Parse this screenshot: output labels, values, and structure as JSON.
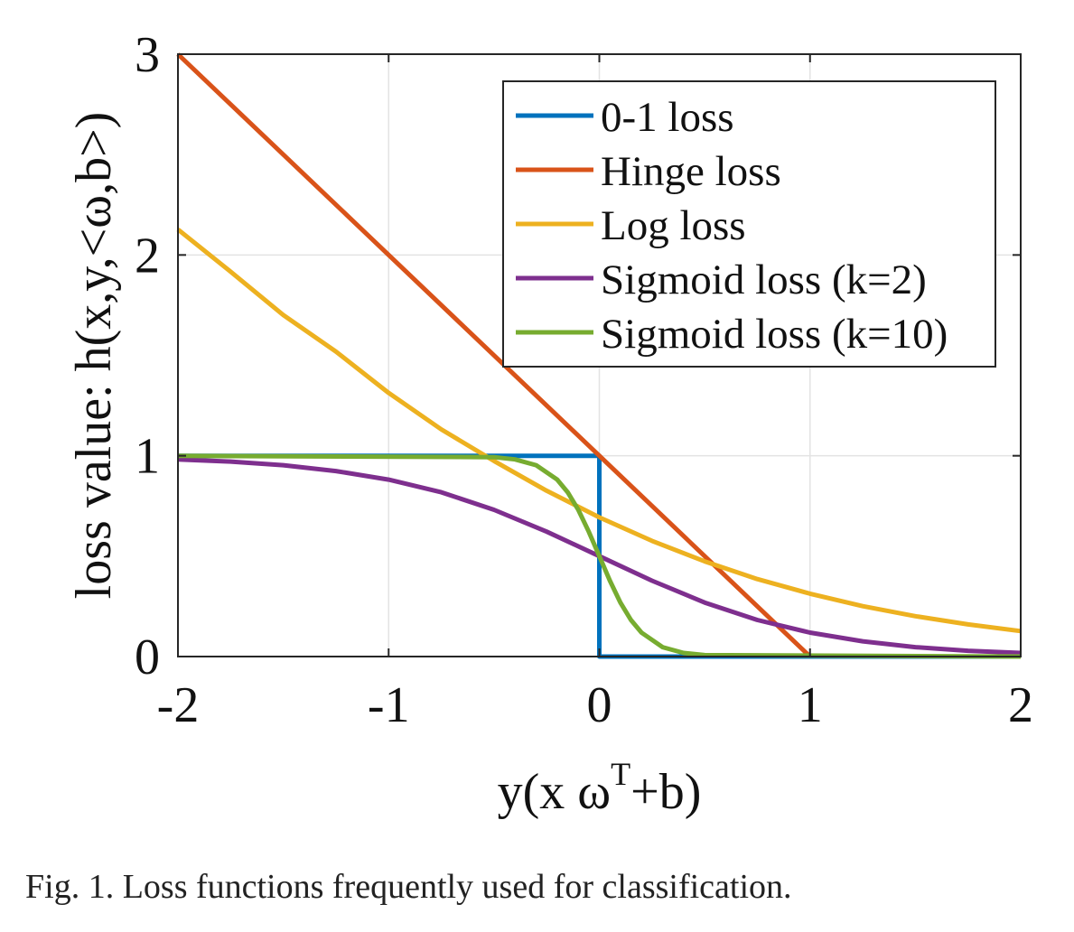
{
  "chart_data": {
    "type": "line",
    "title": "",
    "xlabel": "y(x ω",
    "xlabel_superscript": "T",
    "xlabel_suffix": "+b)",
    "ylabel": "loss value: h(x,y,<ω,b>)",
    "xlim": [
      -2,
      2
    ],
    "ylim": [
      0,
      3
    ],
    "xticks": [
      -2,
      -1,
      0,
      1,
      2
    ],
    "xtick_labels": [
      "-2",
      "-1",
      "0",
      "1",
      "2"
    ],
    "yticks": [
      0,
      1,
      2,
      3
    ],
    "ytick_labels": [
      "0",
      "1",
      "2",
      "3"
    ],
    "grid": true,
    "legend_position": "top-right",
    "series": [
      {
        "name": "0-1 loss",
        "color": "#0072BD",
        "x": [
          -2,
          0,
          0,
          2
        ],
        "y": [
          1,
          1,
          0,
          0
        ]
      },
      {
        "name": "Hinge loss",
        "color": "#D95319",
        "x": [
          -2,
          1
        ],
        "y": [
          3,
          0
        ]
      },
      {
        "name": "Log loss",
        "color": "#EDB120",
        "x": [
          -2,
          -1.75,
          -1.5,
          -1.25,
          -1,
          -0.75,
          -0.5,
          -0.25,
          0,
          0.25,
          0.5,
          0.75,
          1,
          1.25,
          1.5,
          1.75,
          2
        ],
        "y": [
          2.127,
          1.917,
          1.701,
          1.519,
          1.313,
          1.131,
          0.974,
          0.826,
          0.693,
          0.576,
          0.474,
          0.386,
          0.313,
          0.251,
          0.201,
          0.16,
          0.127
        ]
      },
      {
        "name": "Sigmoid loss (k=2)",
        "color": "#7E2F8E",
        "x": [
          -2,
          -1.75,
          -1.5,
          -1.25,
          -1,
          -0.75,
          -0.5,
          -0.25,
          0,
          0.25,
          0.5,
          0.75,
          1,
          1.25,
          1.5,
          1.75,
          2
        ],
        "y": [
          0.982,
          0.971,
          0.953,
          0.924,
          0.881,
          0.818,
          0.731,
          0.622,
          0.5,
          0.378,
          0.269,
          0.182,
          0.119,
          0.076,
          0.047,
          0.029,
          0.018
        ]
      },
      {
        "name": "Sigmoid loss (k=10)",
        "color": "#77AC30",
        "x": [
          -2,
          -0.5,
          -0.4,
          -0.3,
          -0.2,
          -0.15,
          -0.1,
          -0.05,
          0,
          0.05,
          0.1,
          0.15,
          0.2,
          0.3,
          0.4,
          0.5,
          2
        ],
        "y": [
          1,
          0.993,
          0.982,
          0.953,
          0.881,
          0.818,
          0.731,
          0.622,
          0.5,
          0.378,
          0.269,
          0.182,
          0.119,
          0.047,
          0.018,
          0.007,
          0
        ]
      }
    ]
  },
  "caption": "Fig. 1.  Loss functions frequently used for classification."
}
